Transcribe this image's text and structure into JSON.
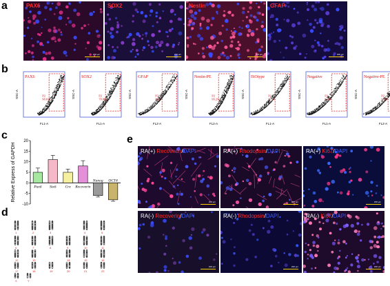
{
  "panel_letters": {
    "a": "a",
    "b": "b",
    "c": "c",
    "d": "d",
    "e": "e"
  },
  "panel_a": {
    "images": [
      {
        "label": "PAX6",
        "scale": "200 μm",
        "bg": "#2a0a28",
        "cell": "#e0308a"
      },
      {
        "label": "SOX2",
        "scale": "200 μm",
        "bg": "#1a0f38",
        "cell": "#8a3cd0"
      },
      {
        "label": "Nestin",
        "scale": "200 μm",
        "bg": "#4a0f2a",
        "cell": "#ff5a9a"
      },
      {
        "label": "GFAP",
        "scale": "200 μm",
        "bg": "#140c3c",
        "cell": "#5a3cd8"
      }
    ]
  },
  "panel_b": {
    "plots": [
      {
        "label": "PAX6",
        "gate": "P2",
        "pct": "98.6%",
        "xlabel": "FL1-A"
      },
      {
        "label": "SOX2",
        "gate": "P2",
        "pct": "78.8%",
        "xlabel": "FL1-A"
      },
      {
        "label": "GFAP",
        "gate": "P2",
        "pct": "0%",
        "xlabel": "FL2-A"
      },
      {
        "label": "Nestin-PE",
        "gate": "P2",
        "pct": "99.2%",
        "xlabel": "FL2-A"
      },
      {
        "label": "ISOtype",
        "gate": "P2",
        "pct": "0.1%",
        "xlabel": "FL1-A"
      },
      {
        "label": "Negative",
        "gate": "P2",
        "pct": "0.3%",
        "xlabel": "FL1-A"
      },
      {
        "label": "Negative-PE",
        "gate": "P2",
        "pct": "0.2%",
        "xlabel": "FL2-A"
      }
    ],
    "ylabel": "SSC-A"
  },
  "chart_data": {
    "type": "bar",
    "categories": [
      "Pax6",
      "Six6",
      "Crx",
      "Recoverin",
      "Nanog",
      "OCT4"
    ],
    "values": [
      5,
      11,
      5,
      8,
      -6,
      -8
    ],
    "errors": [
      2,
      2,
      1.5,
      2.5,
      0.7,
      0.7
    ],
    "colors": [
      "#a6e8a0",
      "#f5b8c8",
      "#f5f0a0",
      "#e490d8",
      "#9a9a9a",
      "#c8b46a"
    ],
    "ylabel": "Relative Express of GAPDH",
    "ylim": [
      -10,
      20
    ],
    "yticks": [
      "-10",
      "-5",
      "0",
      "5",
      "10",
      "15",
      "20"
    ]
  },
  "panel_e": {
    "images": [
      {
        "cond": "RA(+)",
        "marker": "Recoverin",
        "dapi": "DAPI",
        "scale": "200 μm"
      },
      {
        "cond": "RA(+)",
        "marker": "Rhodopsin",
        "dapi": "DAPI",
        "scale": "200 μm"
      },
      {
        "cond": "RA(+)",
        "marker": "Ki67",
        "dapi": "DAPI",
        "scale": "200 μm"
      },
      {
        "cond": "RA(-)",
        "marker": "Recoverin",
        "dapi": "DAPI",
        "scale": "200 μm"
      },
      {
        "cond": "RA(-)",
        "marker": "Rhodopsin",
        "dapi": "DAPI",
        "scale": "200 μm"
      },
      {
        "cond": "RA(-)",
        "marker": "Ki67",
        "dapi": "DAPI",
        "scale": "200 μm"
      }
    ]
  },
  "panel_d": {
    "numbers": [
      "1",
      "2",
      "3",
      "4",
      "5",
      "6",
      "7",
      "8",
      "9",
      "10",
      "11",
      "12",
      "13",
      "14",
      "15",
      "16",
      "17",
      "18",
      "19",
      "20",
      "21",
      "22",
      "X",
      "Y"
    ]
  }
}
